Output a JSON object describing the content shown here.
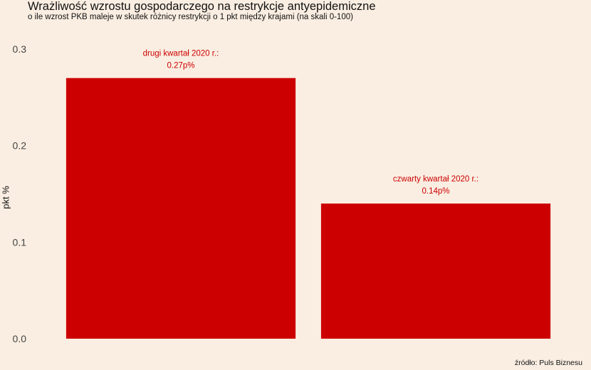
{
  "title": "Wrażliwość wzrostu gospodarczego na restrykcje antyepidemiczne",
  "subtitle": "o ile wzrost PKB maleje w skutek różnicy restrykcji o 1 pkt między krajami (na skali 0-100)",
  "caption": "źródło: Puls Biznesu",
  "colors": {
    "background": "#FAEEE2",
    "bar": "#CC0000",
    "label": "#CC0000",
    "tick": "#444444"
  },
  "chart_data": {
    "type": "bar",
    "title": "Wrażliwość wzrostu gospodarczego na restrykcje antyepidemiczne",
    "subtitle": "o ile wzrost PKB maleje w skutek różnicy restrykcji o 1 pkt między krajami (na skali 0-100)",
    "xlabel": "",
    "ylabel": "pkt %",
    "categories": [
      "drugi kwartał 2020 r.",
      "czwarty kwartał 2020 r."
    ],
    "values": [
      0.27,
      0.14
    ],
    "data_labels": [
      [
        "drugi kwartał 2020 r.:",
        "0.27p%"
      ],
      [
        "czwarty kwartał 2020 r.:",
        "0.14p%"
      ]
    ],
    "ylim": [
      0,
      0.3
    ],
    "yticks": [
      0.0,
      0.1,
      0.2,
      0.3
    ],
    "ytick_labels": [
      "0.0",
      "0.1",
      "0.2",
      "0.3"
    ],
    "grid": false,
    "legend": "none"
  }
}
